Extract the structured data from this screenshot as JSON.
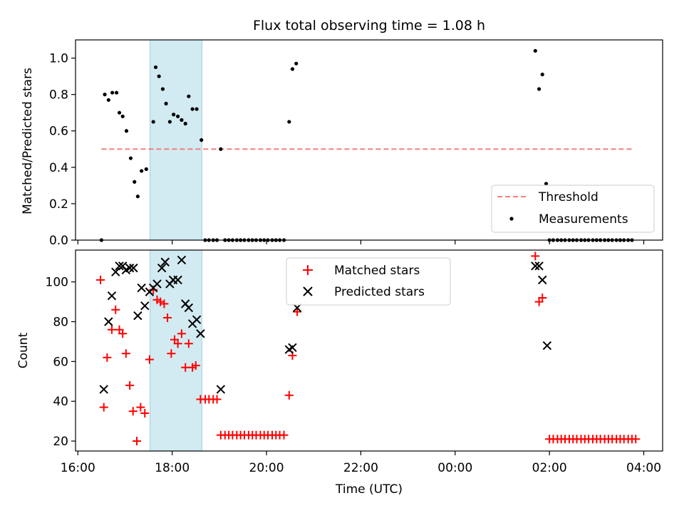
{
  "chart_data": [
    {
      "type": "scatter",
      "title": "Flux total observing time = 1.08 h",
      "ylabel": "Matched/Predicted stars",
      "xlabel": "",
      "ylim": [
        0,
        1.1
      ],
      "yticks": [
        "0.0",
        "0.2",
        "0.4",
        "0.6",
        "0.8",
        "1.0"
      ],
      "xticks": [
        "16:00",
        "18:00",
        "20:00",
        "22:00",
        "00:00",
        "02:00",
        "04:00"
      ],
      "x_unit": "hours since 16:00 UTC",
      "xlim": [
        -0.05,
        12.4
      ],
      "shaded_span": [
        1.53,
        2.63
      ],
      "shade_color": "#add8e6",
      "legend_position": "lower-right",
      "threshold": {
        "name": "Threshold",
        "y": 0.5,
        "x_range": [
          0.5,
          11.8
        ],
        "color": "#f08080"
      },
      "series": [
        {
          "name": "Measurements",
          "color": "#000000",
          "points": [
            [
              0.5,
              0.0
            ],
            [
              0.57,
              0.8
            ],
            [
              0.65,
              0.77
            ],
            [
              0.73,
              0.81
            ],
            [
              0.82,
              0.81
            ],
            [
              0.88,
              0.7
            ],
            [
              0.95,
              0.68
            ],
            [
              1.03,
              0.6
            ],
            [
              1.12,
              0.45
            ],
            [
              1.2,
              0.32
            ],
            [
              1.27,
              0.24
            ],
            [
              1.35,
              0.38
            ],
            [
              1.45,
              0.39
            ],
            [
              1.6,
              0.65
            ],
            [
              1.65,
              0.95
            ],
            [
              1.72,
              0.9
            ],
            [
              1.8,
              0.83
            ],
            [
              1.87,
              0.75
            ],
            [
              1.95,
              0.65
            ],
            [
              2.03,
              0.69
            ],
            [
              2.12,
              0.68
            ],
            [
              2.2,
              0.66
            ],
            [
              2.28,
              0.64
            ],
            [
              2.35,
              0.79
            ],
            [
              2.43,
              0.72
            ],
            [
              2.52,
              0.72
            ],
            [
              2.62,
              0.55
            ],
            [
              2.7,
              0.0
            ],
            [
              2.78,
              0.0
            ],
            [
              2.87,
              0.0
            ],
            [
              2.95,
              0.0
            ],
            [
              3.03,
              0.5
            ],
            [
              3.12,
              0.0
            ],
            [
              3.2,
              0.0
            ],
            [
              3.28,
              0.0
            ],
            [
              3.37,
              0.0
            ],
            [
              3.45,
              0.0
            ],
            [
              3.53,
              0.0
            ],
            [
              3.62,
              0.0
            ],
            [
              3.7,
              0.0
            ],
            [
              3.78,
              0.0
            ],
            [
              3.87,
              0.0
            ],
            [
              3.95,
              0.0
            ],
            [
              4.03,
              0.0
            ],
            [
              4.12,
              0.0
            ],
            [
              4.2,
              0.0
            ],
            [
              4.28,
              0.0
            ],
            [
              4.37,
              0.0
            ],
            [
              4.48,
              0.65
            ],
            [
              4.55,
              0.94
            ],
            [
              4.63,
              0.97
            ],
            [
              9.7,
              1.04
            ],
            [
              9.78,
              0.83
            ],
            [
              9.85,
              0.91
            ],
            [
              9.93,
              0.31
            ],
            [
              10.0,
              0.0
            ],
            [
              10.08,
              0.0
            ],
            [
              10.17,
              0.0
            ],
            [
              10.25,
              0.0
            ],
            [
              10.33,
              0.0
            ],
            [
              10.42,
              0.0
            ],
            [
              10.5,
              0.0
            ],
            [
              10.58,
              0.0
            ],
            [
              10.67,
              0.0
            ],
            [
              10.75,
              0.0
            ],
            [
              10.83,
              0.0
            ],
            [
              10.92,
              0.0
            ],
            [
              11.0,
              0.0
            ],
            [
              11.08,
              0.0
            ],
            [
              11.17,
              0.0
            ],
            [
              11.25,
              0.0
            ],
            [
              11.33,
              0.0
            ],
            [
              11.42,
              0.0
            ],
            [
              11.5,
              0.0
            ],
            [
              11.58,
              0.0
            ],
            [
              11.67,
              0.0
            ],
            [
              11.75,
              0.0
            ]
          ]
        }
      ]
    },
    {
      "type": "scatter",
      "title": "",
      "ylabel": "Count",
      "xlabel": "Time (UTC)",
      "ylim": [
        15,
        116
      ],
      "yticks": [
        "20",
        "40",
        "60",
        "80",
        "100"
      ],
      "xticks": [
        "16:00",
        "18:00",
        "20:00",
        "22:00",
        "00:00",
        "02:00",
        "04:00"
      ],
      "x_unit": "hours since 16:00 UTC",
      "xlim": [
        -0.05,
        12.4
      ],
      "shaded_span": [
        1.53,
        2.63
      ],
      "shade_color": "#add8e6",
      "legend_position": "top-center",
      "series": [
        {
          "name": "Matched stars",
          "marker": "plus",
          "color": "#ff0000",
          "points": [
            [
              0.48,
              101
            ],
            [
              0.55,
              37
            ],
            [
              0.62,
              62
            ],
            [
              0.72,
              76
            ],
            [
              0.8,
              86
            ],
            [
              0.88,
              76
            ],
            [
              0.95,
              74
            ],
            [
              1.02,
              64
            ],
            [
              1.1,
              48
            ],
            [
              1.17,
              35
            ],
            [
              1.25,
              20
            ],
            [
              1.33,
              37
            ],
            [
              1.42,
              34
            ],
            [
              1.52,
              61
            ],
            [
              1.6,
              96
            ],
            [
              1.68,
              91
            ],
            [
              1.75,
              90
            ],
            [
              1.83,
              89
            ],
            [
              1.9,
              82
            ],
            [
              1.98,
              64
            ],
            [
              2.05,
              71
            ],
            [
              2.12,
              69
            ],
            [
              2.2,
              74
            ],
            [
              2.28,
              57
            ],
            [
              2.35,
              69
            ],
            [
              2.43,
              57
            ],
            [
              2.5,
              58
            ],
            [
              2.6,
              41
            ],
            [
              2.7,
              41
            ],
            [
              2.78,
              41
            ],
            [
              2.87,
              41
            ],
            [
              2.95,
              41
            ],
            [
              3.03,
              23
            ],
            [
              3.12,
              23
            ],
            [
              3.2,
              23
            ],
            [
              3.28,
              23
            ],
            [
              3.37,
              23
            ],
            [
              3.45,
              23
            ],
            [
              3.53,
              23
            ],
            [
              3.62,
              23
            ],
            [
              3.7,
              23
            ],
            [
              3.78,
              23
            ],
            [
              3.87,
              23
            ],
            [
              3.95,
              23
            ],
            [
              4.03,
              23
            ],
            [
              4.12,
              23
            ],
            [
              4.2,
              23
            ],
            [
              4.28,
              23
            ],
            [
              4.37,
              23
            ],
            [
              4.48,
              43
            ],
            [
              4.55,
              63
            ],
            [
              4.65,
              85
            ],
            [
              9.7,
              113
            ],
            [
              9.78,
              90
            ],
            [
              9.85,
              92
            ],
            [
              10.0,
              21
            ],
            [
              10.08,
              21
            ],
            [
              10.17,
              21
            ],
            [
              10.25,
              21
            ],
            [
              10.33,
              21
            ],
            [
              10.42,
              21
            ],
            [
              10.5,
              21
            ],
            [
              10.58,
              21
            ],
            [
              10.67,
              21
            ],
            [
              10.75,
              21
            ],
            [
              10.83,
              21
            ],
            [
              10.92,
              21
            ],
            [
              11.0,
              21
            ],
            [
              11.08,
              21
            ],
            [
              11.17,
              21
            ],
            [
              11.25,
              21
            ],
            [
              11.33,
              21
            ],
            [
              11.42,
              21
            ],
            [
              11.5,
              21
            ],
            [
              11.58,
              21
            ],
            [
              11.67,
              21
            ],
            [
              11.75,
              21
            ],
            [
              11.83,
              21
            ]
          ]
        },
        {
          "name": "Predicted stars",
          "marker": "x",
          "color": "#000000",
          "points": [
            [
              0.55,
              46
            ],
            [
              0.65,
              80
            ],
            [
              0.72,
              93
            ],
            [
              0.8,
              105
            ],
            [
              0.88,
              108
            ],
            [
              0.95,
              108
            ],
            [
              1.02,
              106
            ],
            [
              1.1,
              107
            ],
            [
              1.18,
              107
            ],
            [
              1.27,
              83
            ],
            [
              1.35,
              97
            ],
            [
              1.42,
              88
            ],
            [
              1.52,
              95
            ],
            [
              1.6,
              97
            ],
            [
              1.68,
              99
            ],
            [
              1.78,
              107
            ],
            [
              1.85,
              110
            ],
            [
              1.95,
              99
            ],
            [
              2.02,
              101
            ],
            [
              2.12,
              101
            ],
            [
              2.2,
              111
            ],
            [
              2.28,
              89
            ],
            [
              2.35,
              87
            ],
            [
              2.43,
              79
            ],
            [
              2.52,
              81
            ],
            [
              2.6,
              74
            ],
            [
              3.03,
              46
            ],
            [
              4.48,
              66
            ],
            [
              4.55,
              67
            ],
            [
              4.65,
              87
            ],
            [
              9.7,
              108
            ],
            [
              9.78,
              108
            ],
            [
              9.85,
              101
            ],
            [
              9.95,
              68
            ]
          ]
        }
      ]
    }
  ]
}
